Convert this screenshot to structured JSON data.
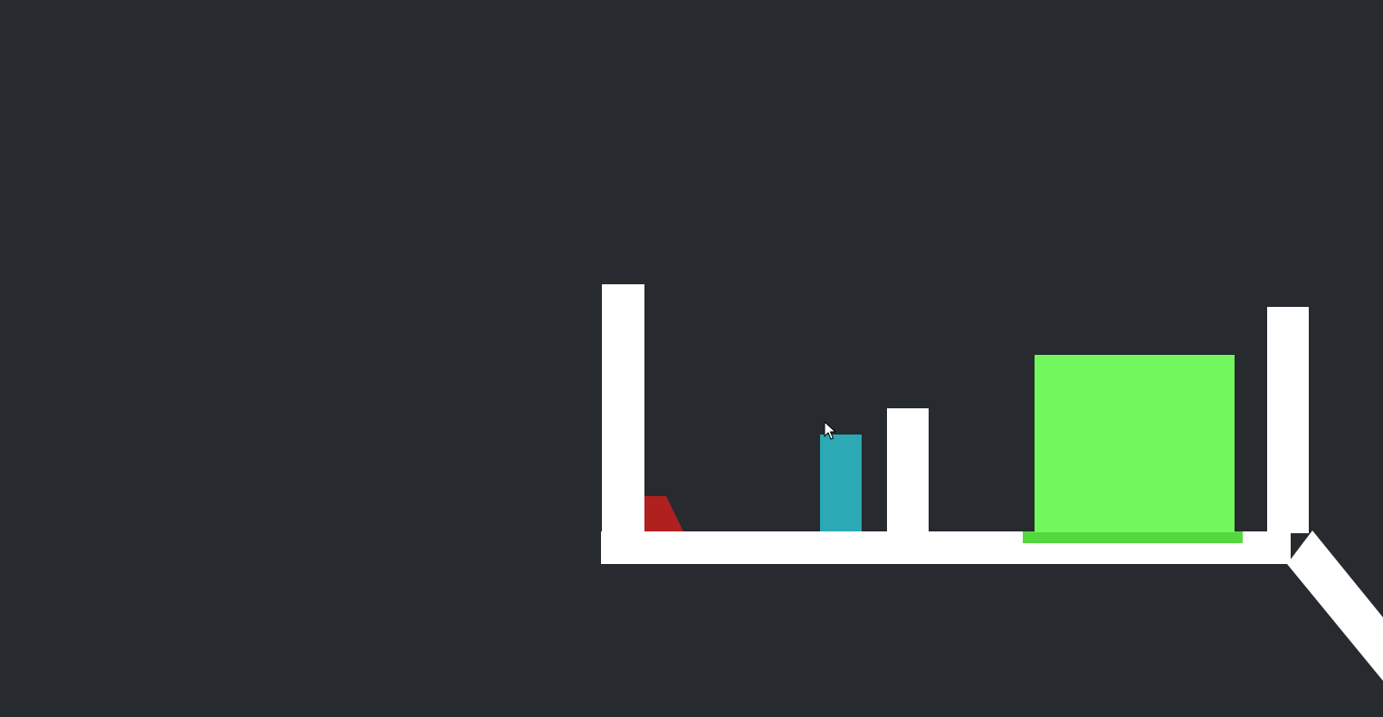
{
  "scene": {
    "background_color": "#272a2f",
    "colors": {
      "static_body": "#ffffff",
      "red_piece": "#b0201f",
      "blue_block": "#2baab5",
      "goal_box": "#72f85c",
      "goal_zone": "#54d83e",
      "cursor": "#ffffff"
    },
    "objects": [
      {
        "name": "left-wall",
        "role": "static"
      },
      {
        "name": "middle-post",
        "role": "static"
      },
      {
        "name": "right-wall",
        "role": "static"
      },
      {
        "name": "floor-platform",
        "role": "static"
      },
      {
        "name": "ramp",
        "role": "static"
      },
      {
        "name": "red-piece",
        "role": "dynamic"
      },
      {
        "name": "blue-block",
        "role": "dynamic"
      },
      {
        "name": "goal-box",
        "role": "goal"
      },
      {
        "name": "goal-zone",
        "role": "goal"
      }
    ],
    "cursor_icon": "mouse-pointer-icon"
  }
}
